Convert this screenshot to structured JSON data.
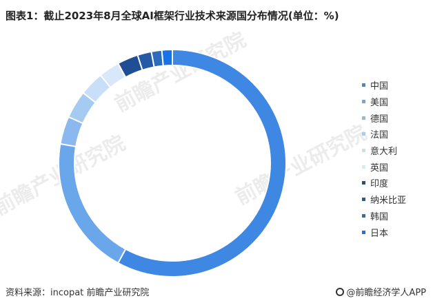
{
  "title": "图表1：截止2023年8月全球AI框架行业技术来源国分布情况(单位：%)",
  "source": "资料来源：incopat 前瞻产业研究院",
  "brand": "@前瞻经济学人APP",
  "watermark": "前瞻产业研究院",
  "chart_data": {
    "type": "pie",
    "donut": true,
    "title": "图表1：截止2023年8月全球AI框架行业技术来源国分布情况(单位：%)",
    "unit": "%",
    "legend_position": "right",
    "categories": [
      "中国",
      "美国",
      "德国",
      "法国",
      "意大利",
      "英国",
      "印度",
      "纳米比亚",
      "韩国",
      "日本"
    ],
    "values": [
      58.5,
      20.0,
      4.0,
      4.0,
      3.5,
      3.0,
      3.0,
      2.0,
      1.5,
      1.5
    ],
    "colors": [
      "#3e87e2",
      "#6aa6ea",
      "#8bb8ef",
      "#a5cbf3",
      "#c9def7",
      "#d9e8f9",
      "#1f4e95",
      "#245aa5",
      "#2d6cbd",
      "#1a72e8"
    ]
  }
}
